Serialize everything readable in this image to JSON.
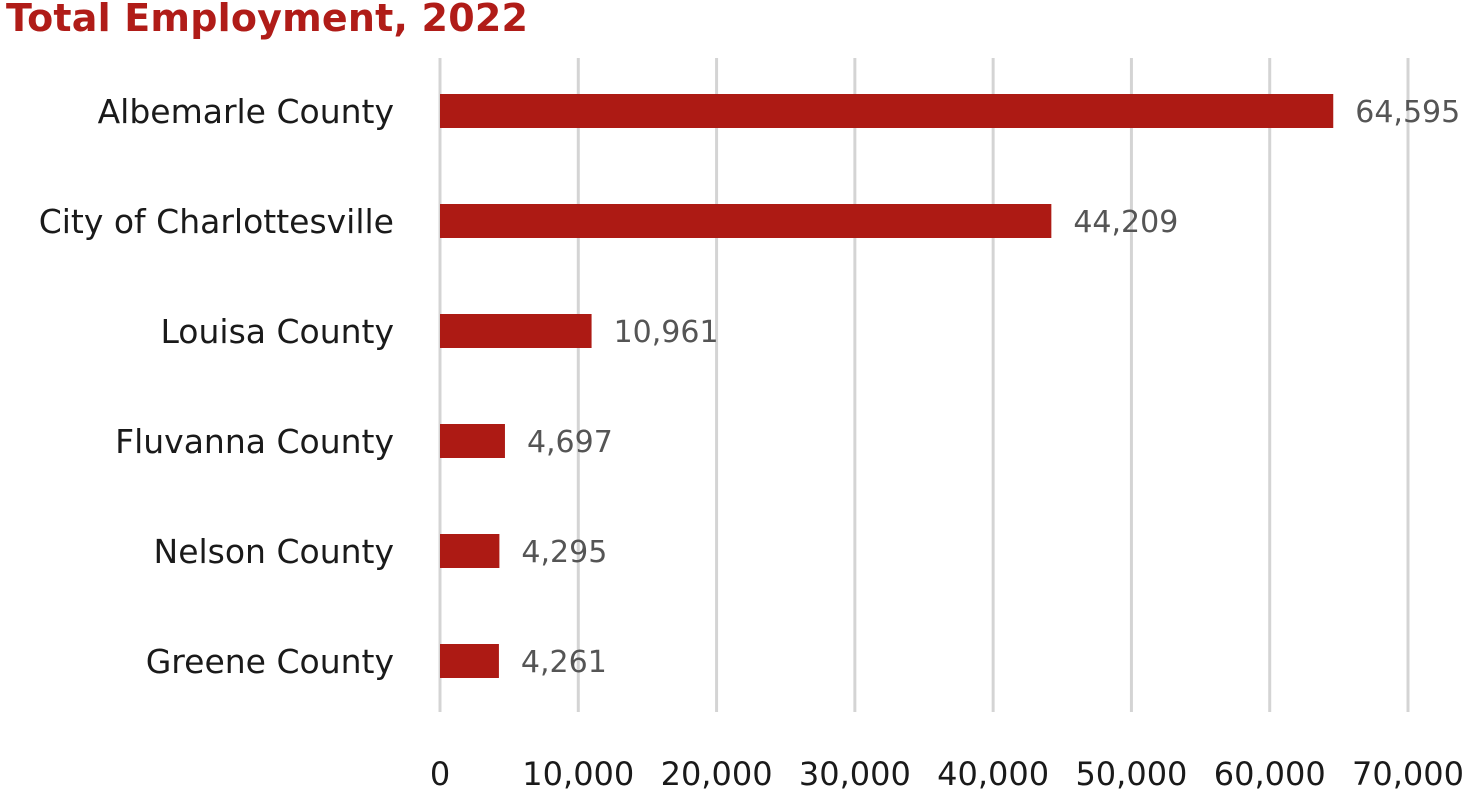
{
  "chart_data": {
    "type": "bar",
    "orientation": "horizontal",
    "title": "Total Employment, 2022",
    "categories": [
      "Albemarle County",
      "City of Charlottesville",
      "Louisa County",
      "Fluvanna County",
      "Nelson County",
      "Greene County"
    ],
    "values": [
      64595,
      44209,
      10961,
      4697,
      4295,
      4261
    ],
    "data_labels": [
      "64,595",
      "44,209",
      "10,961",
      "4,697",
      "4,295",
      "4,261"
    ],
    "xlim": [
      0,
      70000
    ],
    "x_ticks": [
      0,
      10000,
      20000,
      30000,
      40000,
      50000,
      60000,
      70000
    ],
    "x_tick_labels": [
      "0",
      "10,000",
      "20,000",
      "30,000",
      "40,000",
      "50,000",
      "60,000",
      "70,000"
    ],
    "grid": "vertical",
    "legend": "none",
    "xlabel": "",
    "ylabel": ""
  },
  "colors": {
    "bar": "#ad1a14",
    "title": "#b01c18",
    "grid": "#d4d4d4"
  }
}
